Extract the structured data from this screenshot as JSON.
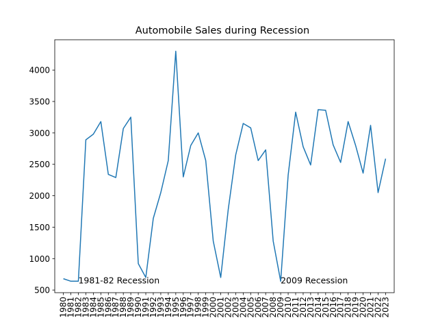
{
  "chart_data": {
    "type": "line",
    "title": "Automobile Sales during Recession",
    "xlabel": "",
    "ylabel": "",
    "x": [
      1980,
      1981,
      1982,
      1983,
      1984,
      1985,
      1986,
      1987,
      1988,
      1989,
      1990,
      1991,
      1992,
      1993,
      1994,
      1995,
      1996,
      1997,
      1998,
      1999,
      2000,
      2001,
      2002,
      2003,
      2004,
      2005,
      2006,
      2007,
      2008,
      2009,
      2010,
      2011,
      2012,
      2013,
      2014,
      2015,
      2016,
      2017,
      2018,
      2019,
      2020,
      2021,
      2022,
      2023
    ],
    "series": [
      {
        "color": "#1f77b4",
        "values": [
          680,
          640,
          640,
          2890,
          2980,
          3180,
          2340,
          2290,
          3070,
          3250,
          920,
          700,
          1640,
          2050,
          2560,
          4300,
          2300,
          2800,
          3000,
          2560,
          1280,
          700,
          1780,
          2650,
          3150,
          3080,
          2560,
          2730,
          1280,
          640,
          2330,
          3330,
          2780,
          2490,
          3370,
          3360,
          2810,
          2530,
          3180,
          2800,
          2360,
          3120,
          2050,
          2590
        ]
      }
    ],
    "xlim": [
      1978.85,
      2024.15
    ],
    "ylim": [
      458,
      4482
    ],
    "yticks": [
      500,
      1000,
      1500,
      2000,
      2500,
      3000,
      3500,
      4000
    ],
    "grid": false,
    "annotations": [
      {
        "text": "1981-82 Recession",
        "x": 1982,
        "y": 650
      },
      {
        "text": "2009 Recession",
        "x": 2009,
        "y": 650
      }
    ]
  }
}
